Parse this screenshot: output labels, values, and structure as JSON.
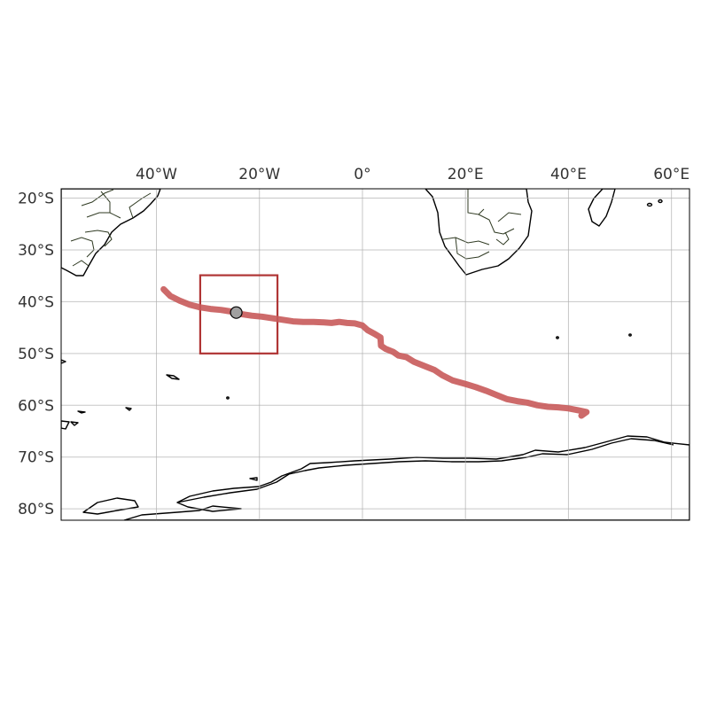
{
  "map": {
    "projection": "PlateCarree",
    "extent": {
      "lon": [
        -58.5,
        63.5
      ],
      "lat": [
        -82.2,
        -18.2
      ]
    },
    "lon_ticks": [
      {
        "value": -40,
        "label": "40°W"
      },
      {
        "value": -20,
        "label": "20°W"
      },
      {
        "value": 0,
        "label": "0°"
      },
      {
        "value": 20,
        "label": "20°E"
      },
      {
        "value": 40,
        "label": "40°E"
      },
      {
        "value": 60,
        "label": "60°E"
      }
    ],
    "lat_ticks": [
      {
        "value": -20,
        "label": "20°S"
      },
      {
        "value": -30,
        "label": "30°S"
      },
      {
        "value": -40,
        "label": "40°S"
      },
      {
        "value": -50,
        "label": "50°S"
      },
      {
        "value": -60,
        "label": "60°S"
      },
      {
        "value": -70,
        "label": "70°S"
      },
      {
        "value": -80,
        "label": "80°S"
      }
    ],
    "gridlines": true,
    "colors": {
      "track": "#c85a5a",
      "box": "#b03535",
      "gridline": "#b0b0b0",
      "coast": "#000000",
      "marker_fill": "#a0a0a0"
    },
    "track": [
      [
        -38.6,
        -37.6
      ],
      [
        -37.3,
        -38.9
      ],
      [
        -35.5,
        -39.8
      ],
      [
        -33.5,
        -40.6
      ],
      [
        -31.5,
        -41.1
      ],
      [
        -29.5,
        -41.4
      ],
      [
        -27.5,
        -41.6
      ],
      [
        -25.5,
        -41.9
      ],
      [
        -23.5,
        -42.4
      ],
      [
        -21.5,
        -42.7
      ],
      [
        -19.5,
        -42.9
      ],
      [
        -17.5,
        -43.2
      ],
      [
        -15.5,
        -43.5
      ],
      [
        -13.5,
        -43.8
      ],
      [
        -11.5,
        -43.9
      ],
      [
        -9.5,
        -43.9
      ],
      [
        -7.5,
        -44.0
      ],
      [
        -6.0,
        -44.1
      ],
      [
        -4.5,
        -43.9
      ],
      [
        -3.0,
        -44.1
      ],
      [
        -1.5,
        -44.2
      ],
      [
        0.0,
        -44.6
      ],
      [
        1.0,
        -45.5
      ],
      [
        2.5,
        -46.3
      ],
      [
        3.5,
        -46.9
      ],
      [
        3.6,
        -48.5
      ],
      [
        4.5,
        -49.1
      ],
      [
        6.0,
        -49.7
      ],
      [
        7.0,
        -50.4
      ],
      [
        8.5,
        -50.7
      ],
      [
        10.0,
        -51.6
      ],
      [
        12.0,
        -52.4
      ],
      [
        14.0,
        -53.2
      ],
      [
        15.5,
        -54.2
      ],
      [
        17.5,
        -55.2
      ],
      [
        20.0,
        -55.9
      ],
      [
        22.0,
        -56.5
      ],
      [
        24.0,
        -57.2
      ],
      [
        26.0,
        -58.0
      ],
      [
        28.0,
        -58.8
      ],
      [
        30.0,
        -59.2
      ],
      [
        32.0,
        -59.5
      ],
      [
        34.0,
        -60.0
      ],
      [
        36.0,
        -60.3
      ],
      [
        38.0,
        -60.4
      ],
      [
        40.0,
        -60.6
      ],
      [
        42.0,
        -61.0
      ],
      [
        43.5,
        -61.3
      ],
      [
        42.5,
        -62.0
      ]
    ],
    "box": {
      "lon": [
        -31.5,
        -16.5
      ],
      "lat": [
        -50.0,
        -34.9
      ]
    },
    "marker": {
      "lon": -24.5,
      "lat": -42.1
    }
  }
}
